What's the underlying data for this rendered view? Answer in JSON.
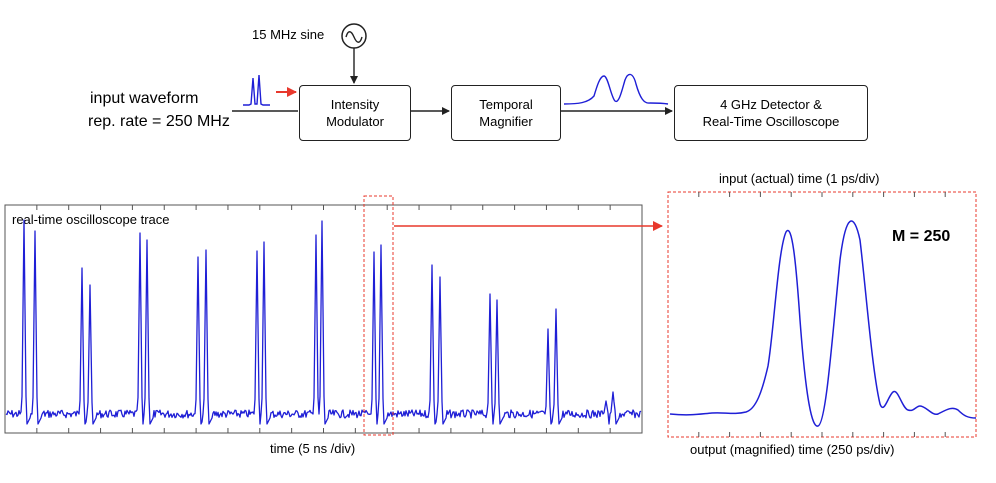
{
  "diagram": {
    "sine_label": "15 MHz sine",
    "input_line1": "input waveform",
    "input_line2": "rep. rate = 250 MHz",
    "blocks": [
      {
        "line1": "Intensity",
        "line2": "Modulator"
      },
      {
        "line1": "Temporal",
        "line2": "Magnifier"
      },
      {
        "line1": "4 GHz Detector &",
        "line2": "Real-Time Oscilloscope"
      }
    ]
  },
  "left_panel": {
    "trace_label": "real-time oscilloscope trace",
    "xlabel": "time (5 ns /div)"
  },
  "right_panel": {
    "top_label": "input (actual) time (1 ps/div)",
    "bottom_label": "output (magnified) time (250 ps/div)",
    "magnification": "M = 250"
  },
  "colors": {
    "trace": "#1f1fd6",
    "highlight": "#e8382c",
    "frame": "#555555"
  }
}
